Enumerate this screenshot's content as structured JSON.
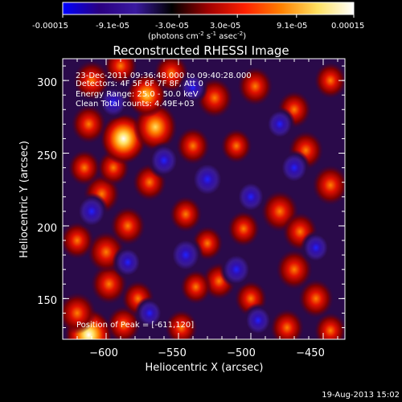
{
  "chart_data": {
    "type": "heatmap",
    "title": "Reconstructed RHESSI Image",
    "colorbar": {
      "min": -0.00015,
      "max": 0.00015,
      "tick_labels": [
        "-0.00015",
        "-9.1e-05",
        "-3.0e-05",
        "3.0e-05",
        "9.1e-05",
        "0.00015"
      ],
      "unit_base": "(photons cm",
      "unit_sup1": "-2",
      "unit_mid": " s",
      "unit_sup2": "-1",
      "unit_end": " asec",
      "unit_sup3": "-2",
      "unit_close": ")",
      "colors": [
        "#0000ff",
        "#2a0080",
        "#3a1aa0",
        "#000000",
        "#a00000",
        "#ff2000",
        "#ff8000",
        "#ffe060",
        "#ffffff"
      ]
    },
    "xlabel": "Heliocentric X (arcsec)",
    "ylabel": "Heliocentric Y (arcsec)",
    "xlim": [
      -630,
      -435
    ],
    "ylim": [
      122,
      315
    ],
    "x_ticks": [
      -600,
      -550,
      -500,
      -450
    ],
    "x_tick_labels": [
      "−600",
      "−550",
      "−500",
      "−450"
    ],
    "y_ticks": [
      150,
      200,
      250,
      300
    ],
    "y_tick_labels": [
      "150",
      "200",
      "250",
      "300"
    ],
    "annotations": [
      "23-Dec-2011 09:36:48.000 to 09:40:28.000",
      "Detectors: 4F 5F 6F 7F 8F, Att 0",
      "Energy Range: 25.0 - 50.0 keV",
      "Clean     Total counts: 4.49E+03"
    ],
    "peak_label": "Position of Peak = [-611,120]",
    "peak": [
      -611,
      120
    ],
    "blobs": [
      {
        "x": -612,
        "y": 125,
        "v": 1.0
      },
      {
        "x": -620,
        "y": 140,
        "v": 0.6
      },
      {
        "x": -598,
        "y": 160,
        "v": 0.55
      },
      {
        "x": -588,
        "y": 132,
        "v": 0.45
      },
      {
        "x": -578,
        "y": 150,
        "v": 0.4
      },
      {
        "x": -548,
        "y": 130,
        "v": 0.4
      },
      {
        "x": -522,
        "y": 162,
        "v": 0.45
      },
      {
        "x": -538,
        "y": 158,
        "v": 0.35
      },
      {
        "x": -500,
        "y": 150,
        "v": 0.4
      },
      {
        "x": -475,
        "y": 130,
        "v": 0.45
      },
      {
        "x": -445,
        "y": 128,
        "v": 0.4
      },
      {
        "x": -455,
        "y": 150,
        "v": 0.5
      },
      {
        "x": -470,
        "y": 170,
        "v": 0.55
      },
      {
        "x": -600,
        "y": 182,
        "v": 0.6
      },
      {
        "x": -620,
        "y": 190,
        "v": 0.45
      },
      {
        "x": -585,
        "y": 200,
        "v": 0.5
      },
      {
        "x": -530,
        "y": 188,
        "v": 0.35
      },
      {
        "x": -545,
        "y": 208,
        "v": 0.4
      },
      {
        "x": -505,
        "y": 198,
        "v": 0.4
      },
      {
        "x": -480,
        "y": 210,
        "v": 0.6
      },
      {
        "x": -466,
        "y": 196,
        "v": 0.5
      },
      {
        "x": -445,
        "y": 228,
        "v": 0.55
      },
      {
        "x": -603,
        "y": 222,
        "v": 0.55
      },
      {
        "x": -570,
        "y": 230,
        "v": 0.45
      },
      {
        "x": -615,
        "y": 240,
        "v": 0.4
      },
      {
        "x": -595,
        "y": 240,
        "v": 0.4
      },
      {
        "x": -540,
        "y": 255,
        "v": 0.45
      },
      {
        "x": -510,
        "y": 255,
        "v": 0.35
      },
      {
        "x": -462,
        "y": 252,
        "v": 0.5
      },
      {
        "x": -445,
        "y": 300,
        "v": 0.4
      },
      {
        "x": -588,
        "y": 260,
        "v": 0.95
      },
      {
        "x": -566,
        "y": 268,
        "v": 0.85
      },
      {
        "x": -572,
        "y": 290,
        "v": 0.7
      },
      {
        "x": -612,
        "y": 270,
        "v": 0.5
      },
      {
        "x": -525,
        "y": 288,
        "v": 0.55
      },
      {
        "x": -497,
        "y": 296,
        "v": 0.5
      },
      {
        "x": -470,
        "y": 280,
        "v": 0.45
      },
      {
        "x": -555,
        "y": 305,
        "v": 0.5
      },
      {
        "x": -610,
        "y": 300,
        "v": 0.55
      },
      {
        "x": -590,
        "y": 310,
        "v": 0.45
      },
      {
        "x": -530,
        "y": 232,
        "v": -0.55
      },
      {
        "x": -560,
        "y": 245,
        "v": -0.45
      },
      {
        "x": -500,
        "y": 220,
        "v": -0.4
      },
      {
        "x": -545,
        "y": 180,
        "v": -0.5
      },
      {
        "x": -510,
        "y": 170,
        "v": -0.45
      },
      {
        "x": -585,
        "y": 175,
        "v": -0.35
      },
      {
        "x": -470,
        "y": 240,
        "v": -0.4
      },
      {
        "x": -455,
        "y": 185,
        "v": -0.35
      },
      {
        "x": -595,
        "y": 285,
        "v": -0.4
      },
      {
        "x": -610,
        "y": 210,
        "v": -0.45
      },
      {
        "x": -480,
        "y": 270,
        "v": -0.35
      },
      {
        "x": -540,
        "y": 295,
        "v": -0.3
      },
      {
        "x": -570,
        "y": 140,
        "v": -0.3
      },
      {
        "x": -495,
        "y": 135,
        "v": -0.35
      }
    ]
  },
  "footer": {
    "timestamp": "19-Aug-2013 15:02"
  }
}
